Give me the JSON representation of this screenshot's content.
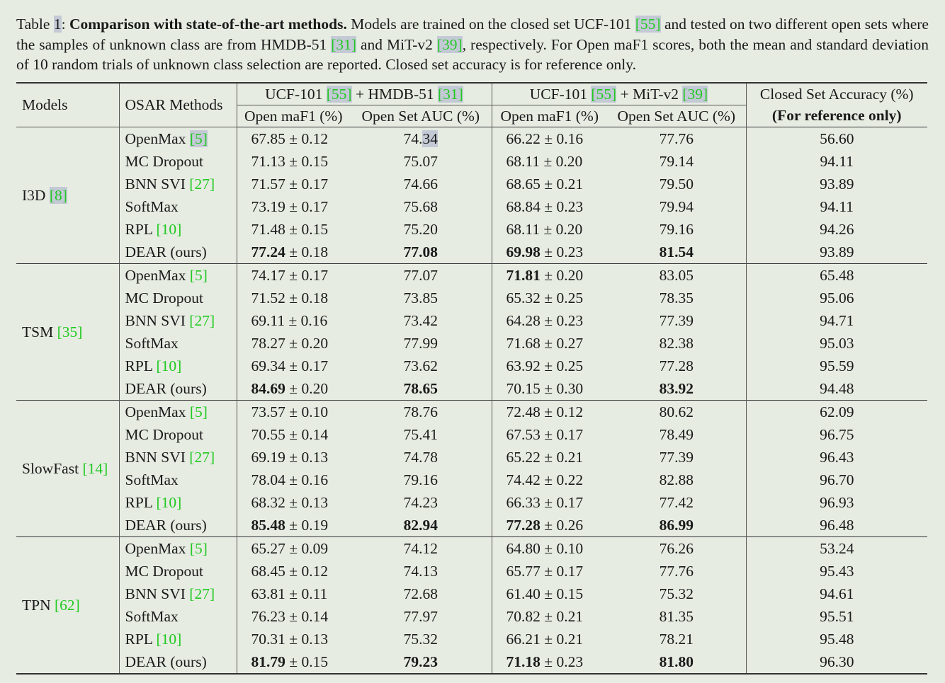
{
  "caption": {
    "label": "Table ",
    "table_number": "1",
    "colon": ": ",
    "title": "Comparison with state-of-the-art methods.",
    "text_1": " Models are trained on the closed set UCF-101 ",
    "ref_ucf": "[55]",
    "text_2": " and tested on two different open sets where the samples of unknown class are from HMDB-51 ",
    "ref_hmdb": "[31]",
    "text_3": " and MiT-v2 ",
    "ref_mit": "[39]",
    "text_4": ", respectively. For Open maF1 scores, both the mean and standard deviation of 10 random trials of unknown class selection are reported. Closed set accuracy is for reference only."
  },
  "header": {
    "models": "Models",
    "methods": "OSAR Methods",
    "group1_prefix": "UCF-101 ",
    "group1_ref1": "[55]",
    "group1_mid": " + HMDB-51 ",
    "group1_ref2": "[31]",
    "group2_prefix": "UCF-101 ",
    "group2_ref1": "[55]",
    "group2_mid": " + MiT-v2 ",
    "group2_ref2": "[39]",
    "open_maf1": "Open maF1 (%)",
    "open_auc": "Open Set AUC (%)",
    "open_maf1_2": "Open maF1 (%)",
    "open_auc_2": "Open Set AUC (%)",
    "closed_acc": "Closed Set Accuracy (%)",
    "closed_note": "(For reference only)"
  },
  "pm": " ± ",
  "groups": [
    {
      "model": "I3D ",
      "model_ref": "[8]",
      "rows": [
        {
          "method": "OpenMax ",
          "ref": "[5]",
          "h_f1": "67.85",
          "h_sd": "0.12",
          "h_auc": "74.34",
          "m_f1": "66.22",
          "m_sd": "0.16",
          "m_auc": "77.76",
          "acc": "56.60"
        },
        {
          "method": "MC Dropout",
          "ref": "",
          "h_f1": "71.13",
          "h_sd": "0.15",
          "h_auc": "75.07",
          "m_f1": "68.11",
          "m_sd": "0.20",
          "m_auc": "79.14",
          "acc": "94.11"
        },
        {
          "method": "BNN SVI ",
          "ref": "[27]",
          "h_f1": "71.57",
          "h_sd": "0.17",
          "h_auc": "74.66",
          "m_f1": "68.65",
          "m_sd": "0.21",
          "m_auc": "79.50",
          "acc": "93.89"
        },
        {
          "method": "SoftMax",
          "ref": "",
          "h_f1": "73.19",
          "h_sd": "0.17",
          "h_auc": "75.68",
          "m_f1": "68.84",
          "m_sd": "0.23",
          "m_auc": "79.94",
          "acc": "94.11"
        },
        {
          "method": "RPL ",
          "ref": "[10]",
          "h_f1": "71.48",
          "h_sd": "0.15",
          "h_auc": "75.20",
          "m_f1": "68.11",
          "m_sd": "0.20",
          "m_auc": "79.16",
          "acc": "94.26"
        },
        {
          "method": "DEAR (ours)",
          "ref": "",
          "h_f1": "77.24",
          "h_sd": "0.18",
          "h_auc": "77.08",
          "m_f1": "69.98",
          "m_sd": "0.23",
          "m_auc": "81.54",
          "acc": "93.89"
        }
      ]
    },
    {
      "model": "TSM ",
      "model_ref": "[35]",
      "rows": [
        {
          "method": "OpenMax ",
          "ref": "[5]",
          "h_f1": "74.17",
          "h_sd": "0.17",
          "h_auc": "77.07",
          "m_f1": "71.81",
          "m_sd": "0.20",
          "m_auc": "83.05",
          "acc": "65.48"
        },
        {
          "method": "MC Dropout",
          "ref": "",
          "h_f1": "71.52",
          "h_sd": "0.18",
          "h_auc": "73.85",
          "m_f1": "65.32",
          "m_sd": "0.25",
          "m_auc": "78.35",
          "acc": "95.06"
        },
        {
          "method": "BNN SVI ",
          "ref": "[27]",
          "h_f1": "69.11",
          "h_sd": "0.16",
          "h_auc": "73.42",
          "m_f1": "64.28",
          "m_sd": "0.23",
          "m_auc": "77.39",
          "acc": "94.71"
        },
        {
          "method": "SoftMax",
          "ref": "",
          "h_f1": "78.27",
          "h_sd": "0.20",
          "h_auc": "77.99",
          "m_f1": "71.68",
          "m_sd": "0.27",
          "m_auc": "82.38",
          "acc": "95.03"
        },
        {
          "method": "RPL ",
          "ref": "[10]",
          "h_f1": "69.34",
          "h_sd": "0.17",
          "h_auc": "73.62",
          "m_f1": "63.92",
          "m_sd": "0.25",
          "m_auc": "77.28",
          "acc": "95.59"
        },
        {
          "method": "DEAR (ours)",
          "ref": "",
          "h_f1": "84.69",
          "h_sd": "0.20",
          "h_auc": "78.65",
          "m_f1": "70.15",
          "m_sd": "0.30",
          "m_auc": "83.92",
          "acc": "94.48"
        }
      ]
    },
    {
      "model": "SlowFast ",
      "model_ref": "[14]",
      "rows": [
        {
          "method": "OpenMax ",
          "ref": "[5]",
          "h_f1": "73.57",
          "h_sd": "0.10",
          "h_auc": "78.76",
          "m_f1": "72.48",
          "m_sd": "0.12",
          "m_auc": "80.62",
          "acc": "62.09"
        },
        {
          "method": "MC Dropout",
          "ref": "",
          "h_f1": "70.55",
          "h_sd": "0.14",
          "h_auc": "75.41",
          "m_f1": "67.53",
          "m_sd": "0.17",
          "m_auc": "78.49",
          "acc": "96.75"
        },
        {
          "method": "BNN SVI ",
          "ref": "[27]",
          "h_f1": "69.19",
          "h_sd": "0.13",
          "h_auc": "74.78",
          "m_f1": "65.22",
          "m_sd": "0.21",
          "m_auc": "77.39",
          "acc": "96.43"
        },
        {
          "method": "SoftMax",
          "ref": "",
          "h_f1": "78.04",
          "h_sd": "0.16",
          "h_auc": "79.16",
          "m_f1": "74.42",
          "m_sd": "0.22",
          "m_auc": "82.88",
          "acc": "96.70"
        },
        {
          "method": "RPL ",
          "ref": "[10]",
          "h_f1": "68.32",
          "h_sd": "0.13",
          "h_auc": "74.23",
          "m_f1": "66.33",
          "m_sd": "0.17",
          "m_auc": "77.42",
          "acc": "96.93"
        },
        {
          "method": "DEAR (ours)",
          "ref": "",
          "h_f1": "85.48",
          "h_sd": "0.19",
          "h_auc": "82.94",
          "m_f1": "77.28",
          "m_sd": "0.26",
          "m_auc": "86.99",
          "acc": "96.48"
        }
      ]
    },
    {
      "model": "TPN ",
      "model_ref": "[62]",
      "rows": [
        {
          "method": "OpenMax ",
          "ref": "[5]",
          "h_f1": "65.27",
          "h_sd": "0.09",
          "h_auc": "74.12",
          "m_f1": "64.80",
          "m_sd": "0.10",
          "m_auc": "76.26",
          "acc": "53.24"
        },
        {
          "method": "MC Dropout",
          "ref": "",
          "h_f1": "68.45",
          "h_sd": "0.12",
          "h_auc": "74.13",
          "m_f1": "65.77",
          "m_sd": "0.17",
          "m_auc": "77.76",
          "acc": "95.43"
        },
        {
          "method": "BNN SVI ",
          "ref": "[27]",
          "h_f1": "63.81",
          "h_sd": "0.11",
          "h_auc": "72.68",
          "m_f1": "61.40",
          "m_sd": "0.15",
          "m_auc": "75.32",
          "acc": "94.61"
        },
        {
          "method": "SoftMax",
          "ref": "",
          "h_f1": "76.23",
          "h_sd": "0.14",
          "h_auc": "77.97",
          "m_f1": "70.82",
          "m_sd": "0.21",
          "m_auc": "81.35",
          "acc": "95.51"
        },
        {
          "method": "RPL ",
          "ref": "[10]",
          "h_f1": "70.31",
          "h_sd": "0.13",
          "h_auc": "75.32",
          "m_f1": "66.21",
          "m_sd": "0.21",
          "m_auc": "78.21",
          "acc": "95.48"
        },
        {
          "method": "DEAR (ours)",
          "ref": "",
          "h_f1": "81.79",
          "h_sd": "0.15",
          "h_auc": "79.23",
          "m_f1": "71.18",
          "m_sd": "0.23",
          "m_auc": "81.80",
          "acc": "96.30"
        }
      ]
    }
  ],
  "bold_cells": {
    "I3D": [
      "5.h_f1",
      "5.h_auc",
      "5.m_f1",
      "5.m_auc"
    ],
    "TSM": [
      "5.h_f1",
      "5.h_auc",
      "0.m_f1",
      "5.m_auc"
    ],
    "SlowFast": [
      "5.h_f1",
      "5.h_auc",
      "5.m_f1",
      "5.m_auc"
    ],
    "TPN": [
      "5.h_f1",
      "5.h_auc",
      "5.m_f1",
      "5.m_auc"
    ]
  },
  "colors": {
    "background": "#e6ece2",
    "citation_green": "#22c922",
    "citation_highlight": "#c4c9d6",
    "text": "#1a1a1a"
  }
}
